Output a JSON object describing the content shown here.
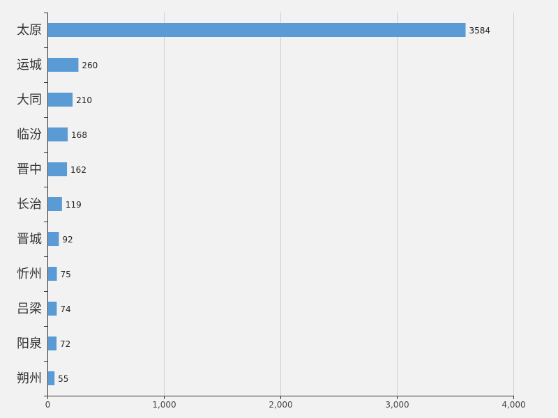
{
  "chart_data": {
    "type": "bar",
    "orientation": "horizontal",
    "categories": [
      "太原",
      "运城",
      "大同",
      "临汾",
      "晋中",
      "长治",
      "晋城",
      "忻州",
      "吕梁",
      "阳泉",
      "朔州"
    ],
    "values": [
      3584,
      260,
      210,
      168,
      162,
      119,
      92,
      75,
      74,
      72,
      55
    ],
    "xlim": [
      0,
      4000
    ],
    "x_ticks": [
      0,
      1000,
      2000,
      3000,
      4000
    ],
    "x_tick_labels": [
      "0",
      "1,000",
      "2,000",
      "3,000",
      "4,000"
    ],
    "grid": true,
    "bar_color": "#5b9bd5",
    "title": "",
    "xlabel": "",
    "ylabel": ""
  }
}
